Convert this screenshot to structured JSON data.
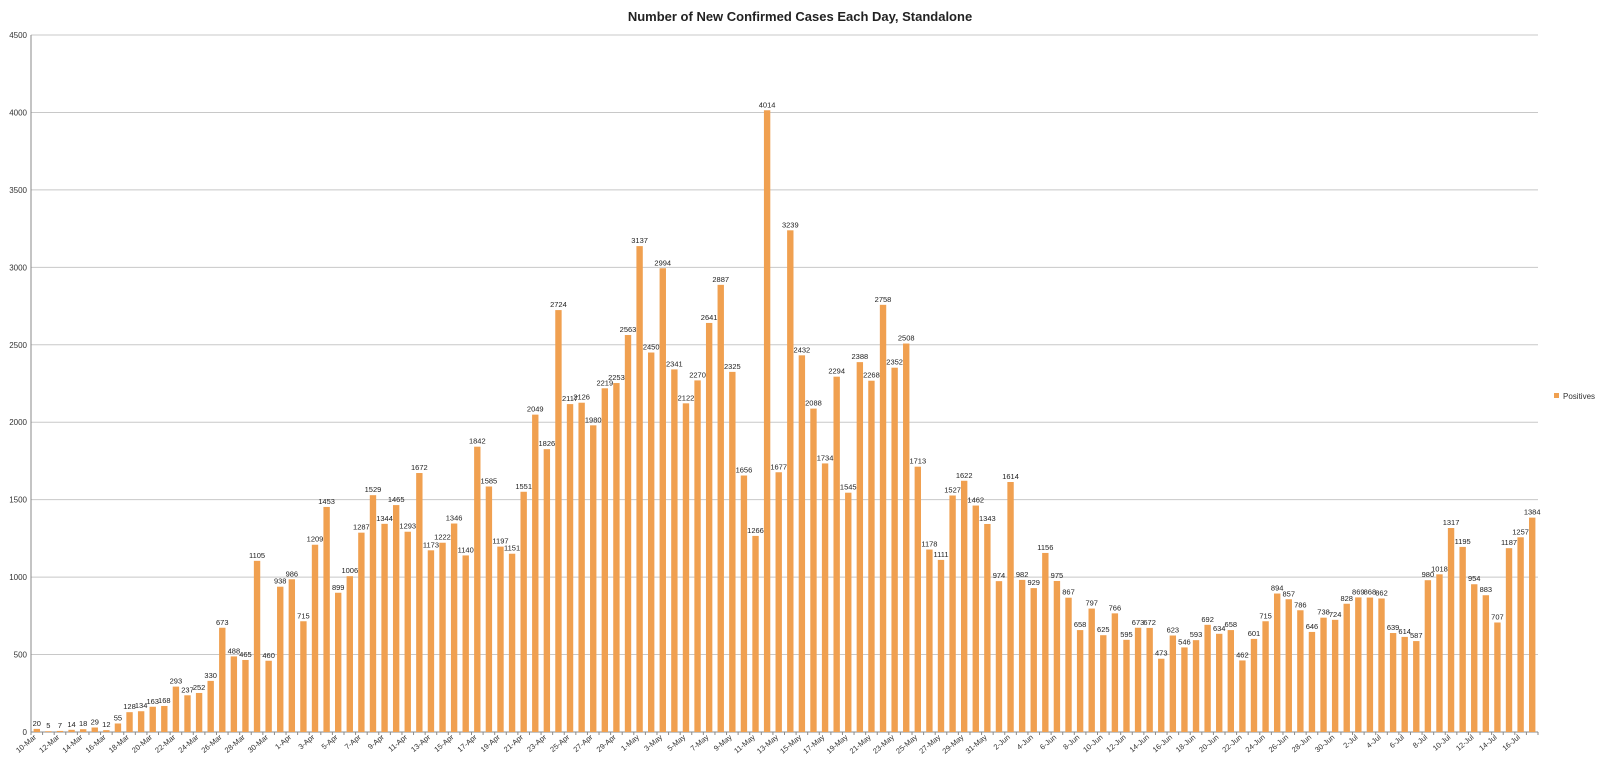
{
  "chart_data": {
    "type": "bar",
    "title": "Number of New Confirmed Cases Each Day, Standalone",
    "xlabel": "",
    "ylabel": "",
    "ylim": [
      0,
      4500
    ],
    "yticks": [
      0,
      500,
      1000,
      1500,
      2000,
      2500,
      3000,
      3500,
      4000,
      4500
    ],
    "grid": true,
    "legend_position": "right",
    "bar_color": "#F0A050",
    "categories": [
      "10-Mar",
      "11-Mar",
      "12-Mar",
      "13-Mar",
      "14-Mar",
      "15-Mar",
      "16-Mar",
      "17-Mar",
      "18-Mar",
      "19-Mar",
      "20-Mar",
      "21-Mar",
      "22-Mar",
      "23-Mar",
      "24-Mar",
      "25-Mar",
      "26-Mar",
      "27-Mar",
      "28-Mar",
      "29-Mar",
      "30-Mar",
      "31-Mar",
      "1-Apr",
      "2-Apr",
      "3-Apr",
      "4-Apr",
      "5-Apr",
      "6-Apr",
      "7-Apr",
      "8-Apr",
      "9-Apr",
      "10-Apr",
      "11-Apr",
      "12-Apr",
      "13-Apr",
      "14-Apr",
      "15-Apr",
      "16-Apr",
      "17-Apr",
      "18-Apr",
      "19-Apr",
      "20-Apr",
      "21-Apr",
      "22-Apr",
      "23-Apr",
      "24-Apr",
      "25-Apr",
      "26-Apr",
      "27-Apr",
      "28-Apr",
      "29-Apr",
      "30-Apr",
      "1-May",
      "2-May",
      "3-May",
      "4-May",
      "5-May",
      "6-May",
      "7-May",
      "8-May",
      "9-May",
      "10-May",
      "11-May",
      "12-May",
      "13-May",
      "14-May",
      "15-May",
      "16-May",
      "17-May",
      "18-May",
      "19-May",
      "20-May",
      "21-May",
      "22-May",
      "23-May",
      "24-May",
      "25-May",
      "26-May",
      "27-May",
      "28-May",
      "29-May",
      "30-May",
      "31-May",
      "1-Jun",
      "2-Jun",
      "3-Jun",
      "4-Jun",
      "5-Jun",
      "6-Jun",
      "7-Jun",
      "8-Jun",
      "9-Jun",
      "10-Jun",
      "11-Jun",
      "12-Jun",
      "13-Jun",
      "14-Jun",
      "15-Jun",
      "16-Jun",
      "17-Jun",
      "18-Jun",
      "19-Jun",
      "20-Jun",
      "21-Jun",
      "22-Jun",
      "23-Jun",
      "24-Jun",
      "25-Jun",
      "26-Jun",
      "27-Jun",
      "28-Jun",
      "29-Jun",
      "30-Jun",
      "1-Jul",
      "2-Jul",
      "3-Jul",
      "4-Jul",
      "5-Jul",
      "6-Jul",
      "7-Jul",
      "8-Jul",
      "9-Jul",
      "10-Jul",
      "11-Jul",
      "12-Jul",
      "13-Jul",
      "14-Jul",
      "15-Jul",
      "16-Jul",
      "17-Jul"
    ],
    "tick_labels": [
      "10-Mar",
      "12-Mar",
      "14-Mar",
      "16-Mar",
      "18-Mar",
      "20-Mar",
      "22-Mar",
      "24-Mar",
      "26-Mar",
      "28-Mar",
      "30-Mar",
      "1-Apr",
      "3-Apr",
      "5-Apr",
      "7-Apr",
      "9-Apr",
      "11-Apr",
      "13-Apr",
      "15-Apr",
      "17-Apr",
      "19-Apr",
      "21-Apr",
      "23-Apr",
      "25-Apr",
      "27-Apr",
      "29-Apr",
      "1-May",
      "3-May",
      "5-May",
      "7-May",
      "9-May",
      "11-May",
      "13-May",
      "15-May",
      "17-May",
      "19-May",
      "21-May",
      "23-May",
      "25-May",
      "27-May",
      "29-May",
      "31-May",
      "2-Jun",
      "4-Jun",
      "6-Jun",
      "8-Jun",
      "10-Jun",
      "12-Jun",
      "14-Jun",
      "16-Jun",
      "18-Jun",
      "20-Jun",
      "22-Jun",
      "24-Jun",
      "26-Jun",
      "28-Jun",
      "30-Jun",
      "2-Jul",
      "4-Jul",
      "6-Jul",
      "8-Jul",
      "10-Jul",
      "12-Jul",
      "14-Jul",
      "16-Jul"
    ],
    "series": [
      {
        "name": "Positives",
        "values": [
          20,
          5,
          7,
          14,
          18,
          29,
          12,
          55,
          128,
          134,
          163,
          168,
          293,
          237,
          252,
          330,
          673,
          488,
          465,
          1105,
          460,
          938,
          986,
          715,
          1209,
          1453,
          899,
          1006,
          1287,
          1529,
          1344,
          1465,
          1293,
          1672,
          1173,
          1222,
          1346,
          1140,
          1842,
          1585,
          1197,
          1151,
          1551,
          2049,
          1826,
          2724,
          2117,
          2126,
          1980,
          2219,
          2253,
          2563,
          3137,
          2450,
          2994,
          2341,
          2122,
          2270,
          2641,
          2887,
          2325,
          1656,
          1266,
          4014,
          1677,
          3239,
          2432,
          2088,
          1734,
          2294,
          1545,
          2388,
          2268,
          2758,
          2352,
          2508,
          1713,
          1178,
          1111,
          1527,
          1622,
          1462,
          1343,
          974,
          1614,
          982,
          929,
          1156,
          975,
          867,
          658,
          797,
          625,
          766,
          595,
          673,
          672,
          473,
          623,
          546,
          593,
          692,
          634,
          658,
          462,
          601,
          715,
          894,
          857,
          786,
          646,
          738,
          724,
          828,
          869,
          868,
          862,
          639,
          614,
          587,
          980,
          1018,
          1317,
          1195,
          954,
          883,
          707,
          1187,
          1257,
          1384
        ]
      }
    ]
  }
}
